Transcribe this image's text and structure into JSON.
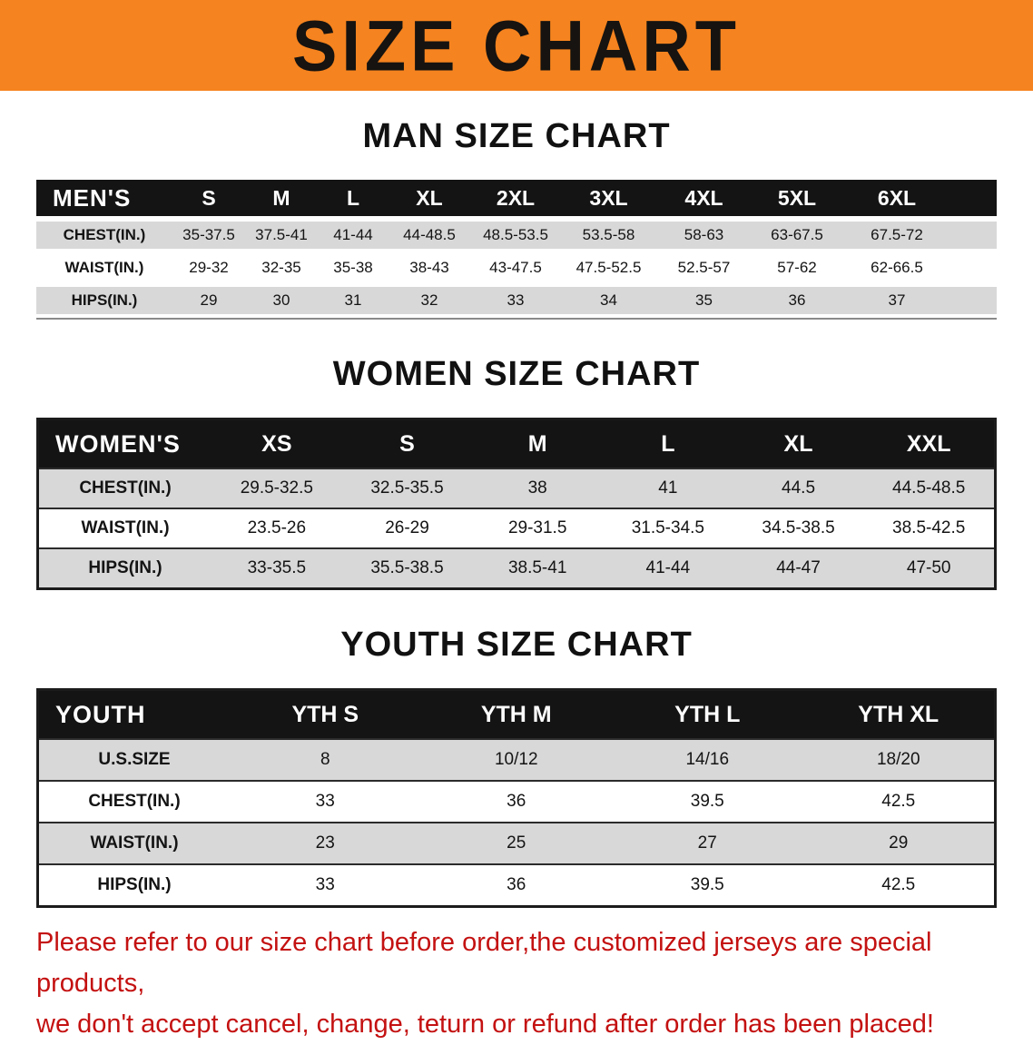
{
  "banner": {
    "title": "SIZE CHART"
  },
  "sections": [
    {
      "heading": "MAN SIZE CHART",
      "table": {
        "header": [
          "MEN'S",
          "S",
          "M",
          "L",
          "XL",
          "2XL",
          "3XL",
          "4XL",
          "5XL",
          "6XL"
        ],
        "rows": [
          {
            "label": "CHEST(IN.)",
            "values": [
              "35-37.5",
              "37.5-41",
              "41-44",
              "44-48.5",
              "48.5-53.5",
              "53.5-58",
              "58-63",
              "63-67.5",
              "67.5-72"
            ]
          },
          {
            "label": "WAIST(IN.)",
            "values": [
              "29-32",
              "32-35",
              "35-38",
              "38-43",
              "43-47.5",
              "47.5-52.5",
              "52.5-57",
              "57-62",
              "62-66.5"
            ]
          },
          {
            "label": "HIPS(IN.)",
            "values": [
              "29",
              "30",
              "31",
              "32",
              "33",
              "34",
              "35",
              "36",
              "37"
            ]
          }
        ]
      }
    },
    {
      "heading": "WOMEN SIZE CHART",
      "table": {
        "header": [
          "WOMEN'S",
          "XS",
          "S",
          "M",
          "L",
          "XL",
          "XXL"
        ],
        "rows": [
          {
            "label": "CHEST(IN.)",
            "values": [
              "29.5-32.5",
              "32.5-35.5",
              "38",
              "41",
              "44.5",
              "44.5-48.5"
            ]
          },
          {
            "label": "WAIST(IN.)",
            "values": [
              "23.5-26",
              "26-29",
              "29-31.5",
              "31.5-34.5",
              "34.5-38.5",
              "38.5-42.5"
            ]
          },
          {
            "label": "HIPS(IN.)",
            "values": [
              "33-35.5",
              "35.5-38.5",
              "38.5-41",
              "41-44",
              "44-47",
              "47-50"
            ]
          }
        ]
      }
    },
    {
      "heading": "YOUTH SIZE CHART",
      "table": {
        "header": [
          "YOUTH",
          "YTH S",
          "YTH M",
          "YTH L",
          "YTH XL"
        ],
        "rows": [
          {
            "label": "U.S.SIZE",
            "values": [
              "8",
              "10/12",
              "14/16",
              "18/20"
            ]
          },
          {
            "label": "CHEST(IN.)",
            "values": [
              "33",
              "36",
              "39.5",
              "42.5"
            ]
          },
          {
            "label": "WAIST(IN.)",
            "values": [
              "23",
              "25",
              "27",
              "29"
            ]
          },
          {
            "label": "HIPS(IN.)",
            "values": [
              "33",
              "36",
              "39.5",
              "42.5"
            ]
          }
        ]
      }
    }
  ],
  "disclaimer": {
    "line1": "Please refer to our size chart before order,the customized jerseys are special products,",
    "line2": "we don't accept cancel, change, teturn or refund after order has been placed!"
  },
  "colors": {
    "banner_bg": "#F5831F",
    "header_bg": "#141414",
    "stripe": "#D8D8D8",
    "disclaimer": "#C41111"
  }
}
